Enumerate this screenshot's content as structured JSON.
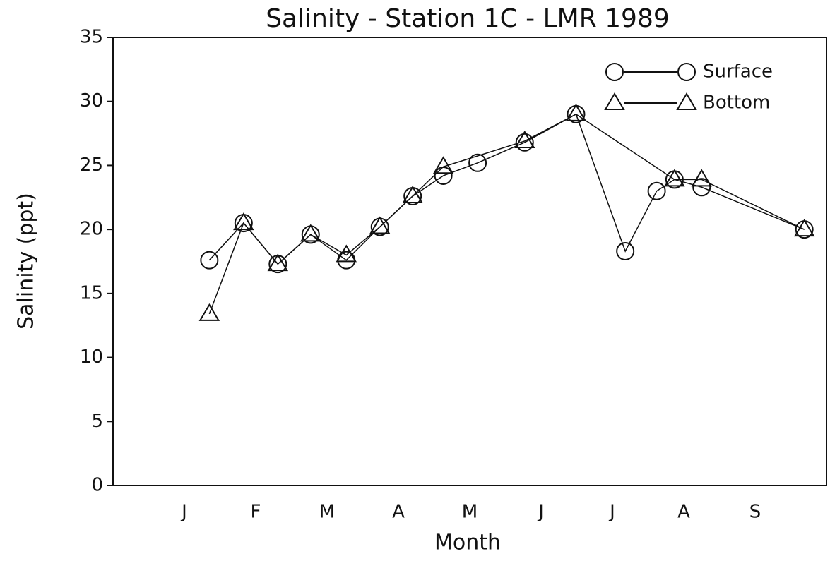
{
  "chart_data": {
    "type": "line",
    "title": "Salinity - Station 1C - LMR 1989",
    "x_label": "Month",
    "y_label": "Salinity (ppt)",
    "series": [
      {
        "name": "Surface",
        "marker": "circle",
        "color": "#111",
        "x": [
          1.35,
          1.83,
          2.31,
          2.77,
          3.27,
          3.74,
          4.2,
          4.63,
          5.11,
          5.77,
          6.49,
          7.18,
          7.62,
          7.87,
          8.25,
          9.69
        ],
        "values": [
          17.6,
          20.5,
          17.3,
          19.6,
          17.6,
          20.2,
          22.6,
          24.2,
          25.2,
          26.8,
          29.0,
          18.3,
          23.0,
          23.9,
          23.3,
          20.0
        ]
      },
      {
        "name": "Bottom",
        "marker": "triangle",
        "color": "#111",
        "x": [
          1.35,
          1.83,
          2.31,
          2.77,
          3.27,
          3.74,
          4.2,
          4.63,
          5.77,
          6.49,
          7.87,
          8.25,
          9.69
        ],
        "values": [
          13.4,
          20.5,
          17.3,
          19.6,
          18.0,
          20.2,
          22.6,
          24.9,
          26.9,
          29.0,
          23.9,
          23.9,
          20.0
        ]
      }
    ],
    "xlim": [
      0,
      10
    ],
    "xticks": [
      {
        "value": 1,
        "label": "J"
      },
      {
        "value": 2,
        "label": "F"
      },
      {
        "value": 3,
        "label": "M"
      },
      {
        "value": 4,
        "label": "A"
      },
      {
        "value": 5,
        "label": "M"
      },
      {
        "value": 6,
        "label": "J"
      },
      {
        "value": 7,
        "label": "J"
      },
      {
        "value": 8,
        "label": "A"
      },
      {
        "value": 9,
        "label": "S"
      }
    ],
    "ylim": [
      0,
      35
    ],
    "yticks": [
      0,
      5,
      10,
      15,
      20,
      25,
      30,
      35
    ],
    "legend": "upper right"
  }
}
